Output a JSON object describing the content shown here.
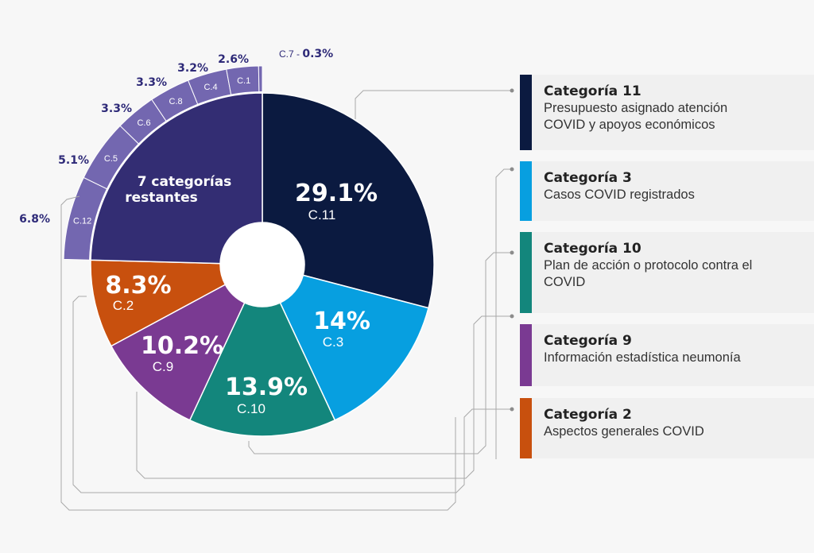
{
  "chart_data": {
    "type": "pie",
    "slices": [
      {
        "id": "c11",
        "code": "C.11",
        "value": 29.1,
        "label": "29.1%",
        "color": "#0b1a40"
      },
      {
        "id": "c3",
        "code": "C.3",
        "value": 14,
        "label": "14%",
        "color": "#079fe0"
      },
      {
        "id": "c10",
        "code": "C.10",
        "value": 13.9,
        "label": "13.9%",
        "color": "#13867c"
      },
      {
        "id": "c9",
        "code": "C.9",
        "value": 10.2,
        "label": "10.2%",
        "color": "#7a3a92"
      },
      {
        "id": "c2",
        "code": "C.2",
        "value": 8.3,
        "label": "8.3%",
        "color": "#c8500e"
      },
      {
        "id": "rest",
        "code": "",
        "value": 24.6,
        "label": "7 categorías restantes",
        "color": "#332d73"
      }
    ],
    "sub_slices": [
      {
        "code": "C.12",
        "value": 6.8,
        "label": "6.8%"
      },
      {
        "code": "C.5",
        "value": 5.1,
        "label": "5.1%"
      },
      {
        "code": "C.6",
        "value": 3.3,
        "label": "3.3%"
      },
      {
        "code": "C.8",
        "value": 3.3,
        "label": "3.3%"
      },
      {
        "code": "C.4",
        "value": 3.2,
        "label": "3.2%"
      },
      {
        "code": "C.1",
        "value": 2.6,
        "label": "2.6%"
      },
      {
        "code": "C.7",
        "value": 0.3,
        "label": "0.3%"
      }
    ],
    "c7_separator": " - ",
    "sub_ring_color": "#7367b0",
    "rest_label_lines": [
      "7 categorías",
      "restantes"
    ],
    "legend": [
      {
        "code": "C.11",
        "title": "Categoría 11",
        "lines": [
          "Presupuesto asignado atención",
          "COVID y apoyos económicos"
        ]
      },
      {
        "code": "C.3",
        "title": "Categoría 3",
        "lines": [
          "Casos COVID registrados"
        ]
      },
      {
        "code": "C.10",
        "title": "Categoría 10",
        "lines": [
          "Plan de acción o protocolo contra el",
          "COVID"
        ]
      },
      {
        "code": "C.9",
        "title": "Categoría 9",
        "lines": [
          "Información estadística neumonía"
        ]
      },
      {
        "code": "C.2",
        "title": "Categoría 2",
        "lines": [
          "Aspectos generales COVID"
        ]
      }
    ]
  }
}
